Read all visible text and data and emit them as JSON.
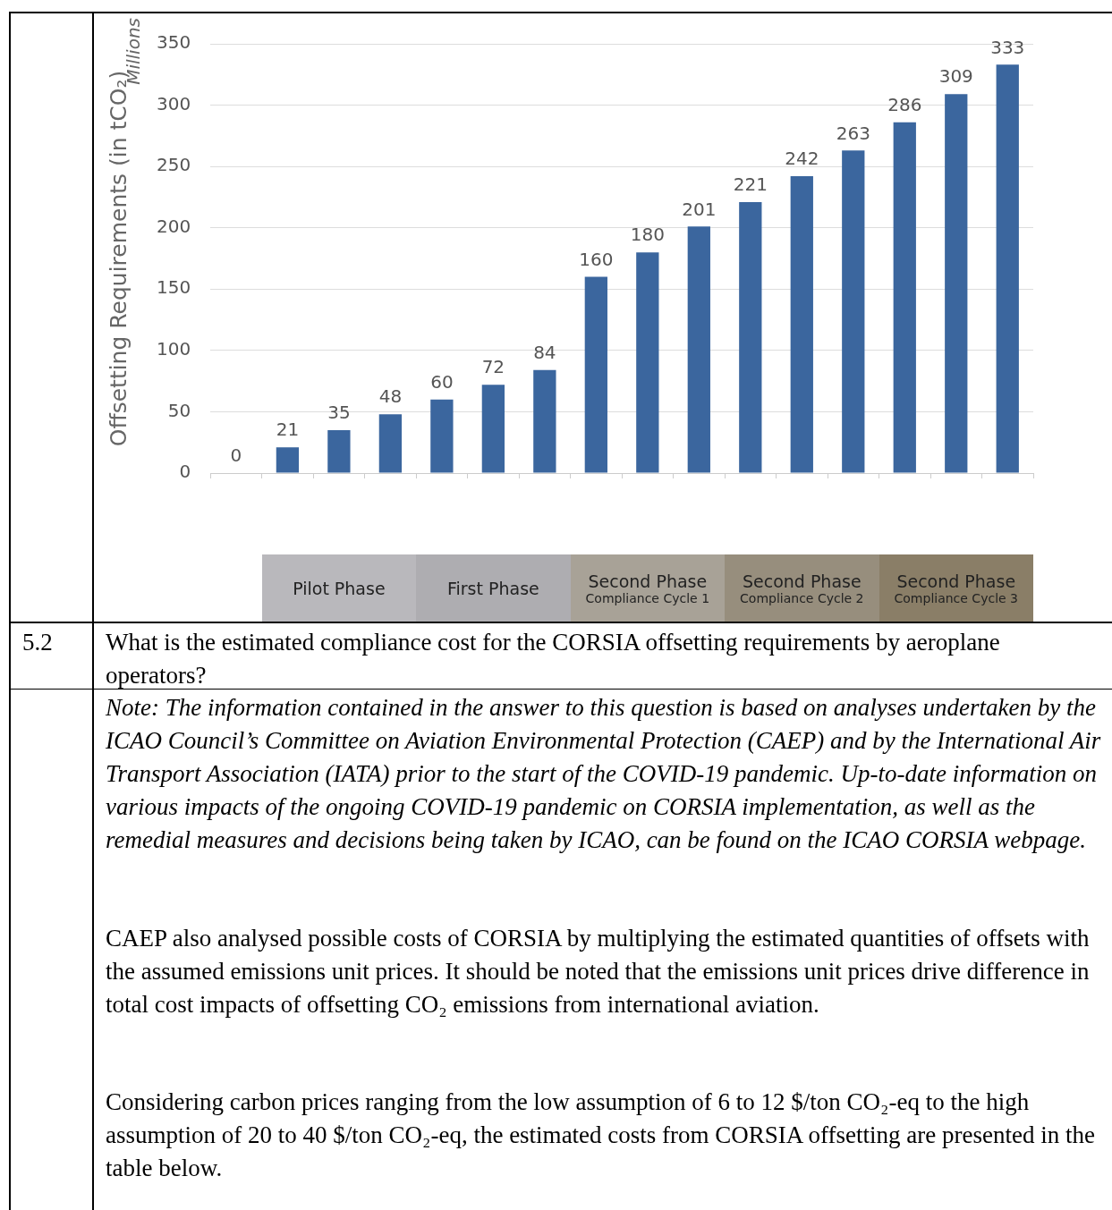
{
  "chart_data": {
    "type": "bar",
    "ylabel": "Offsetting Requirements (in tCO₂)",
    "categories": [
      null,
      null,
      null,
      null,
      null,
      null,
      null,
      null,
      null,
      null,
      null,
      null,
      null,
      null,
      null,
      null
    ],
    "values": [
      0,
      21,
      35,
      48,
      60,
      72,
      84,
      160,
      180,
      201,
      221,
      242,
      263,
      286,
      309,
      333
    ],
    "color": "#3b669e",
    "ylim": [
      0,
      350
    ],
    "yticks": [
      0,
      50,
      100,
      150,
      200,
      250,
      300,
      350
    ],
    "grid": "y",
    "data_labels": true,
    "legend": false,
    "annotations": [
      "Millions",
      "Pilot Phase",
      "First Phase",
      "Second Phase\nCompliance Cycle 1",
      "Second Phase\nCompliance Cycle 2",
      "Second Phase\nCompliance Cycle 3",
      "5.2",
      "What is the estimated compliance cost for the CORSIA offsetting requirements by aeroplane operators?",
      "Note: The information contained in the answer to this question is based on analyses undertaken by the ICAO Council’s Committee on Aviation Environmental Protection (CAEP) and by the International Air Transport Association (IATA) prior to the start of the COVID-19 pandemic. Up-to-date information on various impacts of the ongoing COVID-19 pandemic on CORSIA implementation, as well as the remedial measures and decisions being taken by ICAO, can be found on the ICAO CORSIA webpage.",
      "CAEP also analysed possible costs of CORSIA by multiplying the estimated quantities of offsets with the assumed emissions unit prices. It should be noted that the emissions unit prices drive difference in total cost impacts of offsetting CO₂ emissions from international aviation.",
      "Considering carbon prices ranging from the low assumption of 6 to 12 $/ton CO₂-eq to the high assumption of 20 to 40 $/ton CO₂-eq, the estimated costs from CORSIA offsetting are presented in the table below."
    ]
  }
}
